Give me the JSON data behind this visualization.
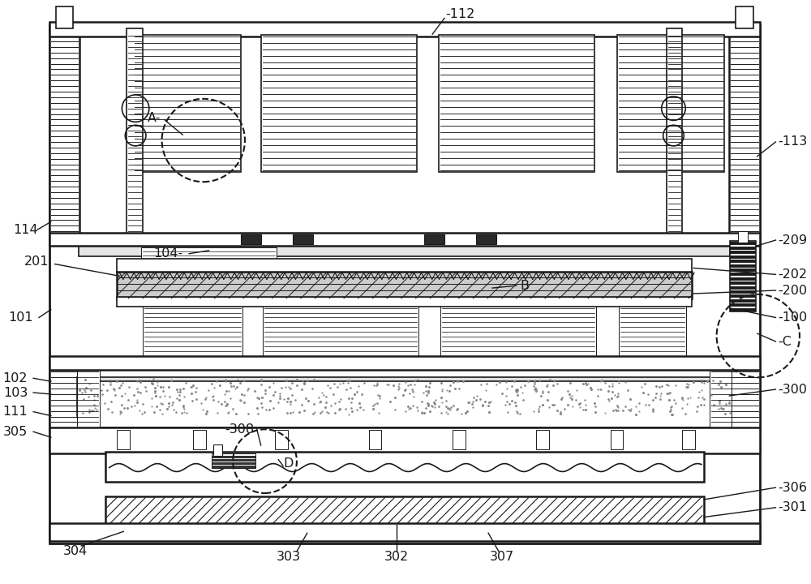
{
  "bg_color": "#ffffff",
  "line_color": "#1a1a1a",
  "fig_w": 10.0,
  "fig_h": 7.2,
  "dpi": 100,
  "xlim": [
    0,
    1000
  ],
  "ylim": [
    0,
    720
  ]
}
